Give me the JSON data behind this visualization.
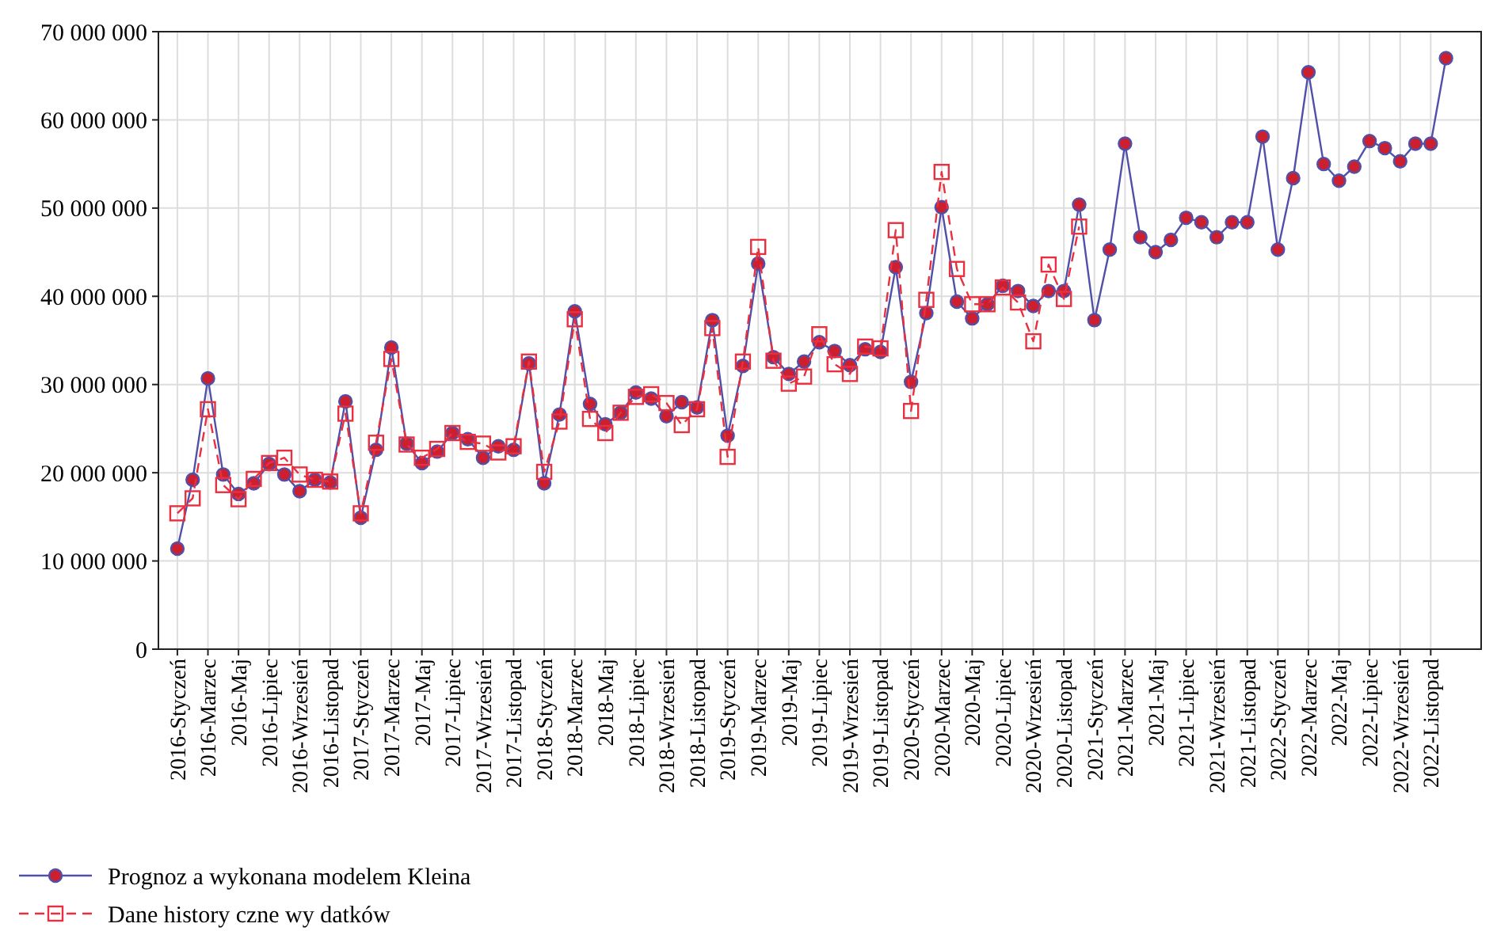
{
  "chart_data": {
    "type": "line",
    "categories": [
      "2016-Styczeń",
      null,
      "2016-Marzec",
      null,
      "2016-Maj",
      null,
      "2016-Lipiec",
      null,
      "2016-Wrzesień",
      null,
      "2016-Listopad",
      null,
      "2017-Styczeń",
      null,
      "2017-Marzec",
      null,
      "2017-Maj",
      null,
      "2017-Lipiec",
      null,
      "2017-Wrzesień",
      null,
      "2017-Listopad",
      null,
      "2018-Styczeń",
      null,
      "2018-Marzec",
      null,
      "2018-Maj",
      null,
      "2018-Lipiec",
      null,
      "2018-Wrzesień",
      null,
      "2018-Listopad",
      null,
      "2019-Styczeń",
      null,
      "2019-Marzec",
      null,
      "2019-Maj",
      null,
      "2019-Lipiec",
      null,
      "2019-Wrzesień",
      null,
      "2019-Listopad",
      null,
      "2020-Styczeń",
      null,
      "2020-Marzec",
      null,
      "2020-Maj",
      null,
      "2020-Lipiec",
      null,
      "2020-Wrzesień",
      null,
      "2020-Listopad",
      null,
      "2021-Styczeń",
      null,
      "2021-Marzec",
      null,
      "2021-Maj",
      null,
      "2021-Lipiec",
      null,
      "2021-Wrzesień",
      null,
      "2021-Listopad",
      null,
      "2022-Styczeń",
      null,
      "2022-Marzec",
      null,
      "2022-Maj",
      null,
      "2022-Lipiec",
      null,
      "2022-Wrzesień",
      null,
      "2022-Listopad",
      null
    ],
    "series": [
      {
        "name": "Prognoz a wykonana modelem Kleina",
        "color": "#5050a8",
        "marker": "circle",
        "line_style": "solid",
        "values": [
          11400000,
          19200000,
          30700000,
          19800000,
          17600000,
          18800000,
          21000000,
          19800000,
          17900000,
          19200000,
          18900000,
          28100000,
          14900000,
          22600000,
          34200000,
          23300000,
          21100000,
          22400000,
          24500000,
          23800000,
          21700000,
          23000000,
          22600000,
          32400000,
          18800000,
          26600000,
          38300000,
          27800000,
          25500000,
          26800000,
          29100000,
          28400000,
          26400000,
          28000000,
          27400000,
          37300000,
          24200000,
          32100000,
          43700000,
          33100000,
          31200000,
          32600000,
          34800000,
          33800000,
          32200000,
          34000000,
          33700000,
          43300000,
          30300000,
          38100000,
          50100000,
          39400000,
          37500000,
          39100000,
          41200000,
          40600000,
          38900000,
          40600000,
          40600000,
          50400000,
          37300000,
          45300000,
          57300000,
          46700000,
          45000000,
          46400000,
          48900000,
          48400000,
          46700000,
          48400000,
          48400000,
          58100000,
          45300000,
          53400000,
          65400000,
          55000000,
          53100000,
          54700000,
          57600000,
          56800000,
          55300000,
          57300000,
          57300000,
          67000000
        ]
      },
      {
        "name": "Dane history czne wy datków",
        "color": "#e83040",
        "marker": "square",
        "line_style": "dashed",
        "values": [
          15400000,
          17100000,
          27200000,
          18600000,
          17000000,
          19300000,
          21100000,
          21700000,
          19800000,
          19200000,
          19000000,
          26700000,
          15400000,
          23400000,
          32900000,
          23200000,
          21700000,
          22700000,
          24500000,
          23500000,
          23300000,
          22300000,
          23000000,
          32600000,
          20100000,
          25800000,
          37400000,
          26100000,
          24500000,
          26800000,
          28600000,
          28900000,
          27900000,
          25400000,
          27200000,
          36400000,
          21800000,
          32600000,
          45600000,
          32700000,
          30100000,
          30900000,
          35700000,
          32300000,
          31200000,
          34300000,
          34100000,
          47500000,
          27000000,
          39600000,
          54100000,
          43100000,
          39100000,
          39100000,
          41000000,
          39300000,
          34900000,
          43600000,
          39700000,
          47900000,
          null,
          null,
          null,
          null,
          null,
          null,
          null,
          null,
          null,
          null,
          null,
          null,
          null,
          null,
          null,
          null,
          null,
          null,
          null,
          null,
          null,
          null,
          null,
          null
        ]
      }
    ],
    "ylim": [
      0,
      70000000
    ],
    "yticks": [
      {
        "value": 0,
        "label": "0"
      },
      {
        "value": 10000000,
        "label": "10 000 000"
      },
      {
        "value": 20000000,
        "label": "20 000 000"
      },
      {
        "value": 30000000,
        "label": "30 000 000"
      },
      {
        "value": 40000000,
        "label": "40 000 000"
      },
      {
        "value": 50000000,
        "label": "50 000 000"
      },
      {
        "value": 60000000,
        "label": "60 000 000"
      },
      {
        "value": 70000000,
        "label": "70 000 000"
      }
    ],
    "grid": true,
    "legend": "bottom left"
  }
}
